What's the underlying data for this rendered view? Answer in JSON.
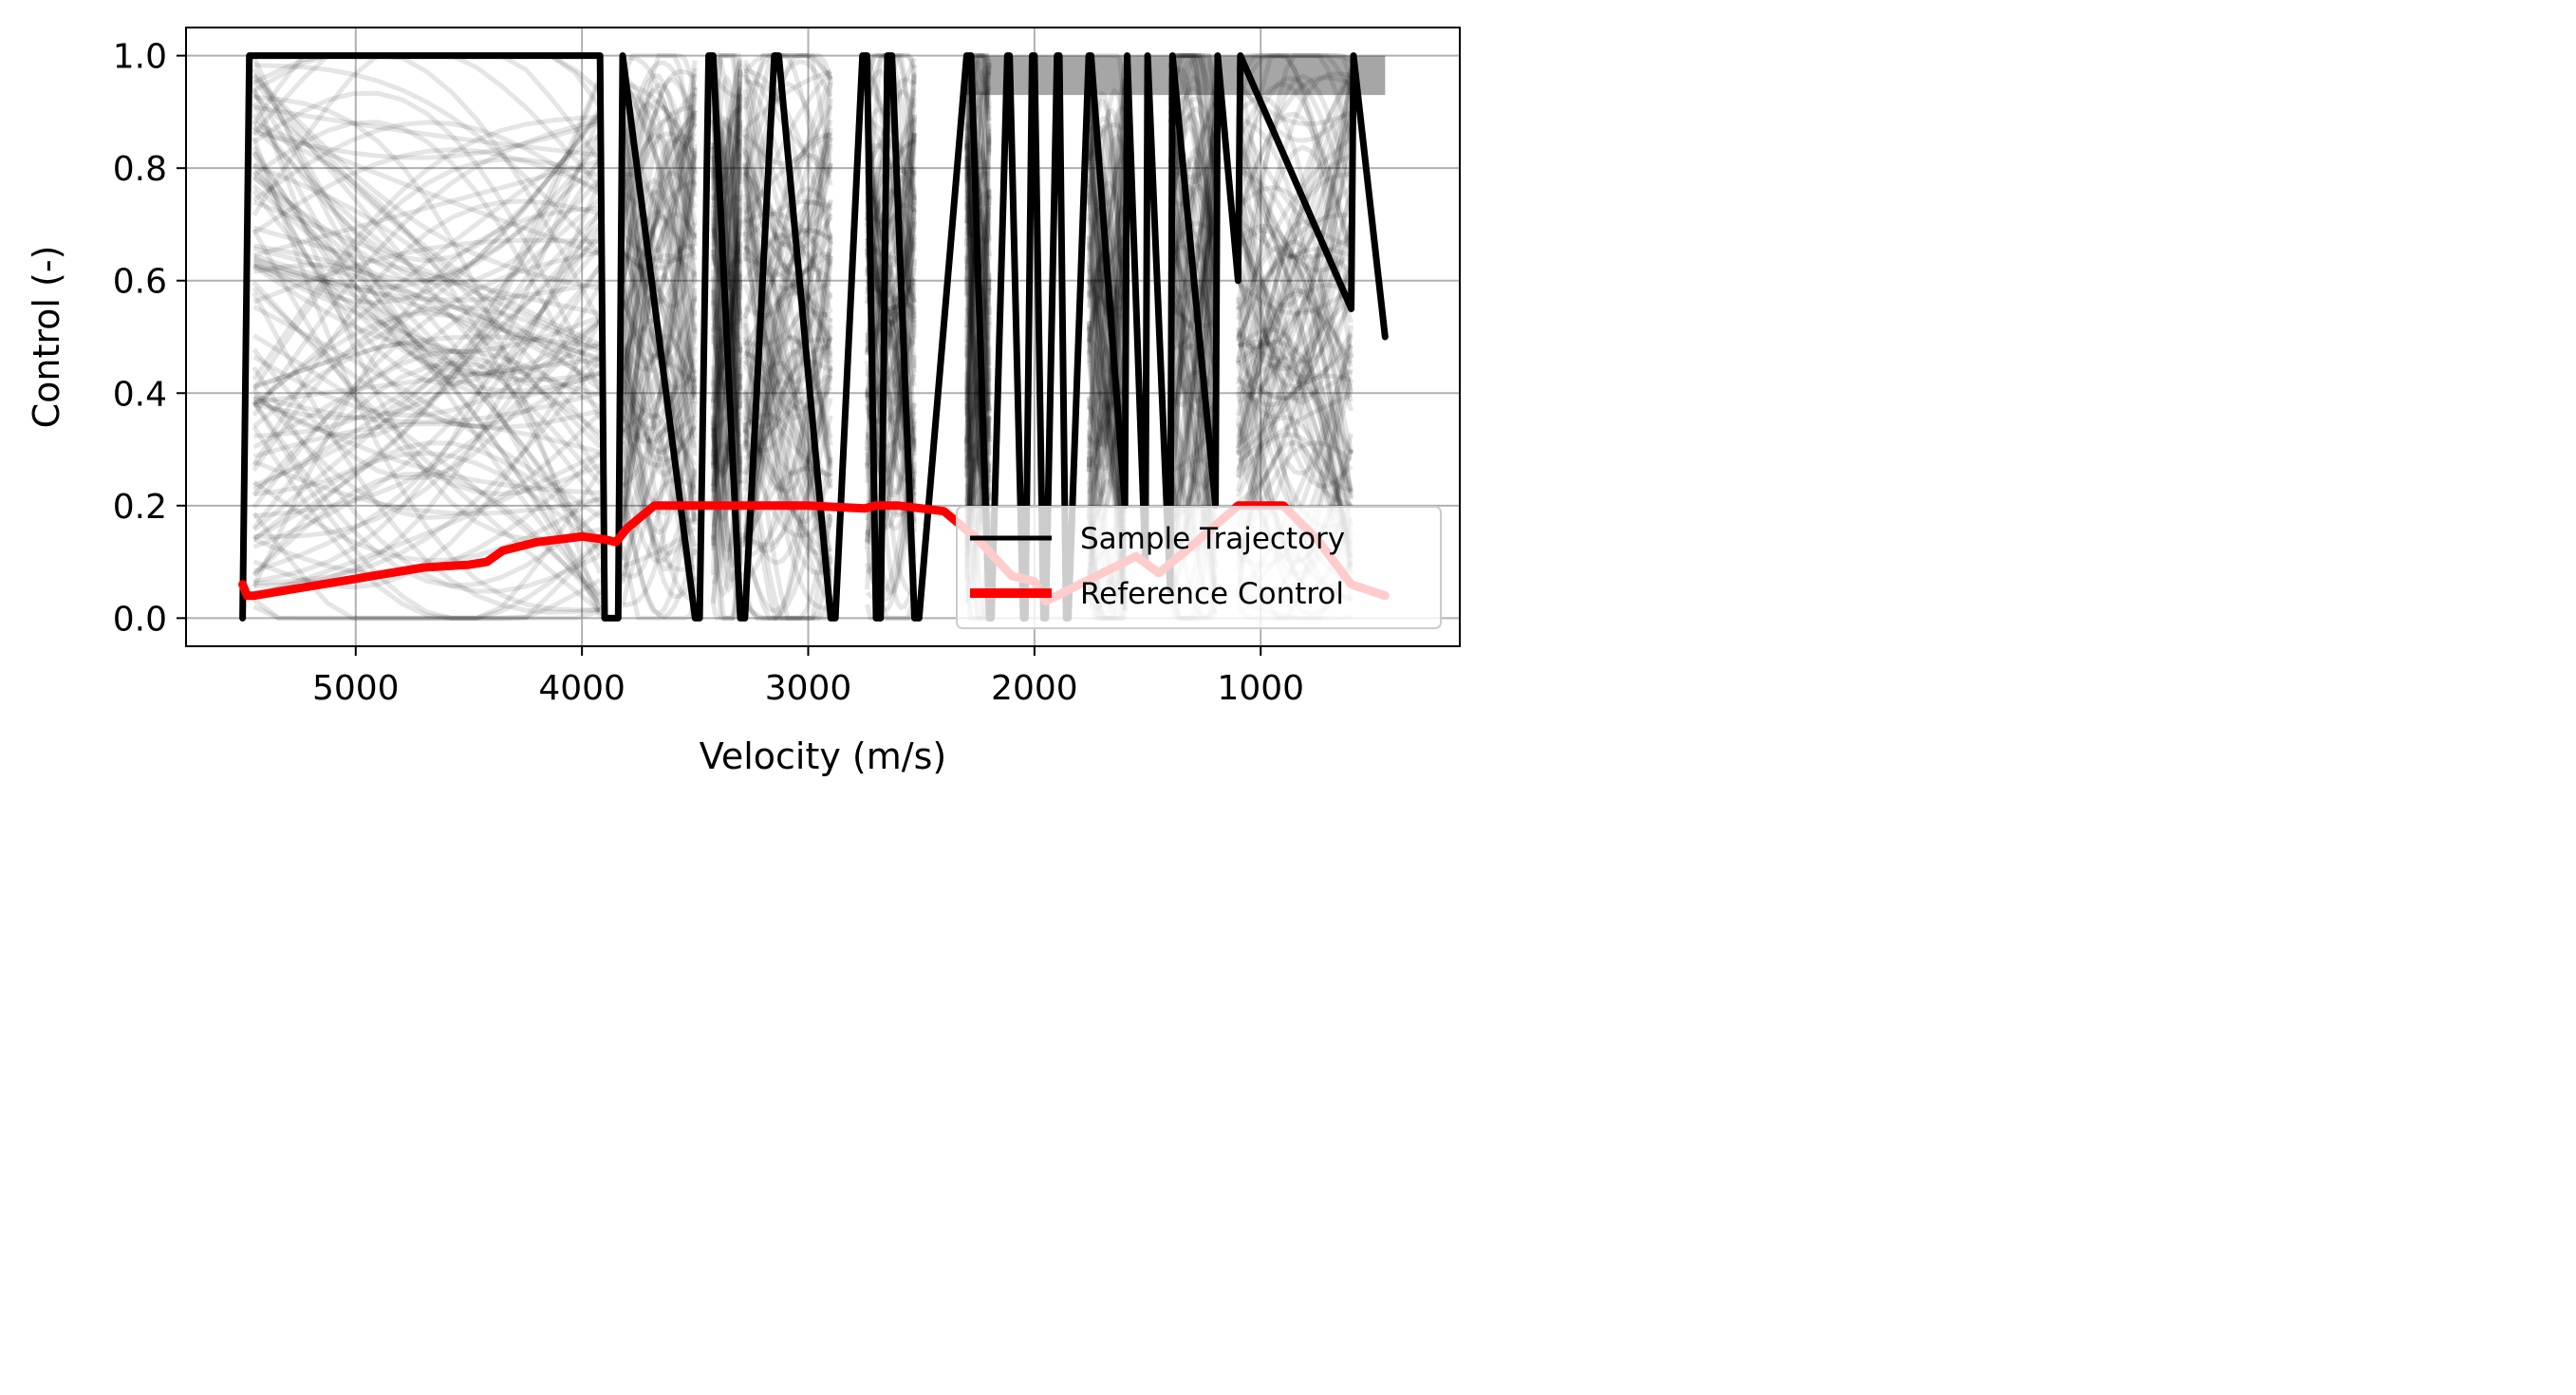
{
  "chart_data": {
    "type": "line",
    "title": "",
    "xlabel": "Velocity (m/s)",
    "ylabel": "Control (-)",
    "xlim": [
      5750,
      120
    ],
    "ylim": [
      -0.05,
      1.05
    ],
    "x_inverted": true,
    "grid": true,
    "x_ticks": [
      5000,
      4000,
      3000,
      2000,
      1000
    ],
    "x_tick_labels": [
      "5000",
      "4000",
      "3000",
      "2000",
      "1000"
    ],
    "y_ticks": [
      0.0,
      0.2,
      0.4,
      0.6,
      0.8,
      1.0
    ],
    "y_tick_labels": [
      "0.0",
      "0.2",
      "0.4",
      "0.6",
      "0.8",
      "1.0"
    ],
    "legend": {
      "position": "lower-right",
      "entries": [
        {
          "label": "Sample Trajectory",
          "color": "#000000"
        },
        {
          "label": "Reference Control",
          "color": "#ff0000"
        }
      ]
    },
    "series": [
      {
        "name": "Reference Control",
        "color": "#ff0000",
        "x": [
          5500,
          5480,
          5450,
          5300,
          5000,
          4700,
          4500,
          4420,
          4350,
          4200,
          4000,
          3900,
          3850,
          3800,
          3680,
          3500,
          3000,
          2750,
          2700,
          2600,
          2400,
          2250,
          2100,
          2000,
          1950,
          1800,
          1700,
          1550,
          1450,
          1300,
          1100,
          900,
          750,
          600,
          450
        ],
        "y": [
          0.06,
          0.04,
          0.04,
          0.05,
          0.07,
          0.09,
          0.095,
          0.1,
          0.12,
          0.135,
          0.145,
          0.14,
          0.135,
          0.16,
          0.2,
          0.2,
          0.2,
          0.195,
          0.2,
          0.2,
          0.19,
          0.14,
          0.075,
          0.065,
          0.03,
          0.06,
          0.08,
          0.11,
          0.08,
          0.13,
          0.2,
          0.2,
          0.14,
          0.06,
          0.04
        ]
      },
      {
        "name": "Sample Trajectory",
        "color": "#000000",
        "x": [
          5500,
          5470,
          5440,
          3920,
          3900,
          3840,
          3820,
          3500,
          3480,
          3440,
          3420,
          3300,
          3280,
          3150,
          3130,
          2900,
          2880,
          2760,
          2740,
          2700,
          2680,
          2650,
          2630,
          2530,
          2510,
          2300,
          2280,
          2200,
          2190,
          2120,
          2110,
          2050,
          2040,
          2010,
          2000,
          1960,
          1950,
          1900,
          1890,
          1860,
          1850,
          1760,
          1750,
          1600,
          1590,
          1510,
          1500,
          1400,
          1390,
          1200,
          1190,
          1100,
          1090,
          600,
          590,
          450
        ],
        "y": [
          0.0,
          1.0,
          1.0,
          1.0,
          0.0,
          0.0,
          1.0,
          0.0,
          0.0,
          1.0,
          1.0,
          0.0,
          0.0,
          1.0,
          1.0,
          0.0,
          0.0,
          1.0,
          1.0,
          0.0,
          0.0,
          1.0,
          1.0,
          0.0,
          0.0,
          1.0,
          1.0,
          0.0,
          0.0,
          1.0,
          1.0,
          0.0,
          0.0,
          1.0,
          1.0,
          0.0,
          0.0,
          1.0,
          1.0,
          0.0,
          0.0,
          1.0,
          1.0,
          0.2,
          1.0,
          0.1,
          1.0,
          0.05,
          1.0,
          0.2,
          1.0,
          0.6,
          1.0,
          0.55,
          1.0,
          0.5
        ]
      }
    ]
  }
}
